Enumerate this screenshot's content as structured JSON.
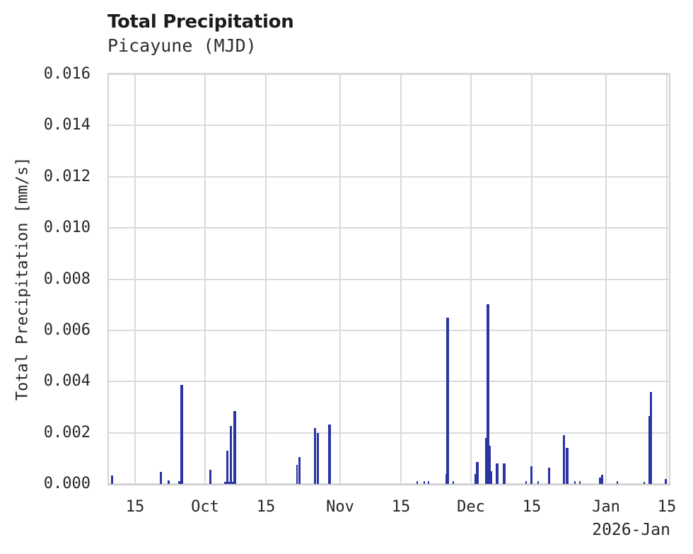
{
  "header": {
    "title": "Total Precipitation",
    "subtitle": "Picayune (MJD)"
  },
  "chart_data": {
    "type": "bar",
    "title": "Total Precipitation",
    "subtitle": "Picayune (MJD)",
    "ylabel": "Total Precipitation [mm/s]",
    "xlabel": "",
    "x_offset_label": "2026-Jan",
    "grid": true,
    "legend": "none",
    "ylim": [
      0,
      0.016
    ],
    "x_range": [
      "2025-09-09T00:00",
      "2026-01-15T12:00"
    ],
    "colors": {
      "bar": "#2b35a2",
      "grid": "#dadada",
      "frame": "#d2d2d2",
      "text": "#262626"
    },
    "y_ticks": [
      {
        "v": 0.0,
        "label": "0.000"
      },
      {
        "v": 0.002,
        "label": "0.002"
      },
      {
        "v": 0.004,
        "label": "0.004"
      },
      {
        "v": 0.006,
        "label": "0.006"
      },
      {
        "v": 0.008,
        "label": "0.008"
      },
      {
        "v": 0.01,
        "label": "0.010"
      },
      {
        "v": 0.012,
        "label": "0.012"
      },
      {
        "v": 0.014,
        "label": "0.014"
      },
      {
        "v": 0.016,
        "label": "0.016"
      }
    ],
    "x_ticks": [
      {
        "t": "2025-09-15T00:00",
        "label": "15"
      },
      {
        "t": "2025-10-01T00:00",
        "label": "Oct"
      },
      {
        "t": "2025-10-15T00:00",
        "label": "15"
      },
      {
        "t": "2025-11-01T00:00",
        "label": "Nov"
      },
      {
        "t": "2025-11-15T00:00",
        "label": "15"
      },
      {
        "t": "2025-12-01T00:00",
        "label": "Dec"
      },
      {
        "t": "2025-12-15T00:00",
        "label": "15"
      },
      {
        "t": "2026-01-01T00:00",
        "label": "Jan"
      },
      {
        "t": "2026-01-15T00:00",
        "label": "15"
      }
    ],
    "series": [
      {
        "name": "Total Precipitation",
        "unit": "mm/s",
        "points": [
          {
            "t": "2025-09-09T19:00",
            "v": 0.00033,
            "w": 3
          },
          {
            "t": "2025-09-20T23:00",
            "v": 0.00046,
            "w": 3
          },
          {
            "t": "2025-09-22T17:00",
            "v": 0.00014,
            "w": 3
          },
          {
            "t": "2025-09-25T03:00",
            "v": 0.0001,
            "w": 3
          },
          {
            "t": "2025-09-25T15:00",
            "v": 0.00386,
            "w": 4
          },
          {
            "t": "2025-10-02T06:00",
            "v": 0.00055,
            "w": 3
          },
          {
            "t": "2025-10-06T18:00",
            "v": 8e-05,
            "w": 16
          },
          {
            "t": "2025-10-06T03:00",
            "v": 0.0013,
            "w": 3
          },
          {
            "t": "2025-10-06T22:00",
            "v": 0.00227,
            "w": 3
          },
          {
            "t": "2025-10-07T22:00",
            "v": 0.00286,
            "w": 4
          },
          {
            "t": "2025-10-22T04:00",
            "v": 0.00075,
            "w": 2
          },
          {
            "t": "2025-10-22T16:00",
            "v": 0.00105,
            "w": 3
          },
          {
            "t": "2025-10-26T06:00",
            "v": 0.00218,
            "w": 3
          },
          {
            "t": "2025-10-26T22:00",
            "v": 0.00198,
            "w": 3
          },
          {
            "t": "2025-10-29T13:00",
            "v": 0.00231,
            "w": 4
          },
          {
            "t": "2025-11-18T17:00",
            "v": 0.0001,
            "w": 2
          },
          {
            "t": "2025-11-20T08:00",
            "v": 0.0001,
            "w": 2
          },
          {
            "t": "2025-11-21T07:00",
            "v": 0.0001,
            "w": 2
          },
          {
            "t": "2025-11-25T08:00",
            "v": 0.0004,
            "w": 2
          },
          {
            "t": "2025-11-25T17:00",
            "v": 0.00649,
            "w": 4
          },
          {
            "t": "2025-11-26T23:00",
            "v": 0.0001,
            "w": 2
          },
          {
            "t": "2025-12-02T02:00",
            "v": 0.0004,
            "w": 2
          },
          {
            "t": "2025-12-02T12:00",
            "v": 0.00085,
            "w": 4
          },
          {
            "t": "2025-12-04T15:00",
            "v": 0.0018,
            "w": 3
          },
          {
            "t": "2025-12-05T00:00",
            "v": 0.00702,
            "w": 4
          },
          {
            "t": "2025-12-05T10:00",
            "v": 0.0015,
            "w": 2
          },
          {
            "t": "2025-12-05T18:00",
            "v": 0.0005,
            "w": 2
          },
          {
            "t": "2025-12-07T01:00",
            "v": 0.0008,
            "w": 4
          },
          {
            "t": "2025-12-08T17:00",
            "v": 0.0008,
            "w": 4
          },
          {
            "t": "2025-12-13T18:00",
            "v": 0.0001,
            "w": 2
          },
          {
            "t": "2025-12-14T21:00",
            "v": 0.0007,
            "w": 3
          },
          {
            "t": "2025-12-16T11:00",
            "v": 0.0001,
            "w": 2
          },
          {
            "t": "2025-12-18T22:00",
            "v": 0.00065,
            "w": 3
          },
          {
            "t": "2025-12-22T09:00",
            "v": 0.0019,
            "w": 3
          },
          {
            "t": "2025-12-23T04:00",
            "v": 0.0014,
            "w": 4
          },
          {
            "t": "2025-12-24T21:00",
            "v": 0.0001,
            "w": 2
          },
          {
            "t": "2025-12-26T00:00",
            "v": 0.0001,
            "w": 2
          },
          {
            "t": "2025-12-30T16:00",
            "v": 0.00025,
            "w": 3
          },
          {
            "t": "2025-12-31T02:00",
            "v": 0.00035,
            "w": 3
          },
          {
            "t": "2026-01-03T17:00",
            "v": 0.0001,
            "w": 2
          },
          {
            "t": "2026-01-09T20:00",
            "v": 8e-05,
            "w": 2
          },
          {
            "t": "2026-01-11T00:00",
            "v": 0.00265,
            "w": 2
          },
          {
            "t": "2026-01-11T07:00",
            "v": 0.0036,
            "w": 3
          },
          {
            "t": "2026-01-14T18:00",
            "v": 0.0002,
            "w": 3
          }
        ]
      }
    ]
  }
}
